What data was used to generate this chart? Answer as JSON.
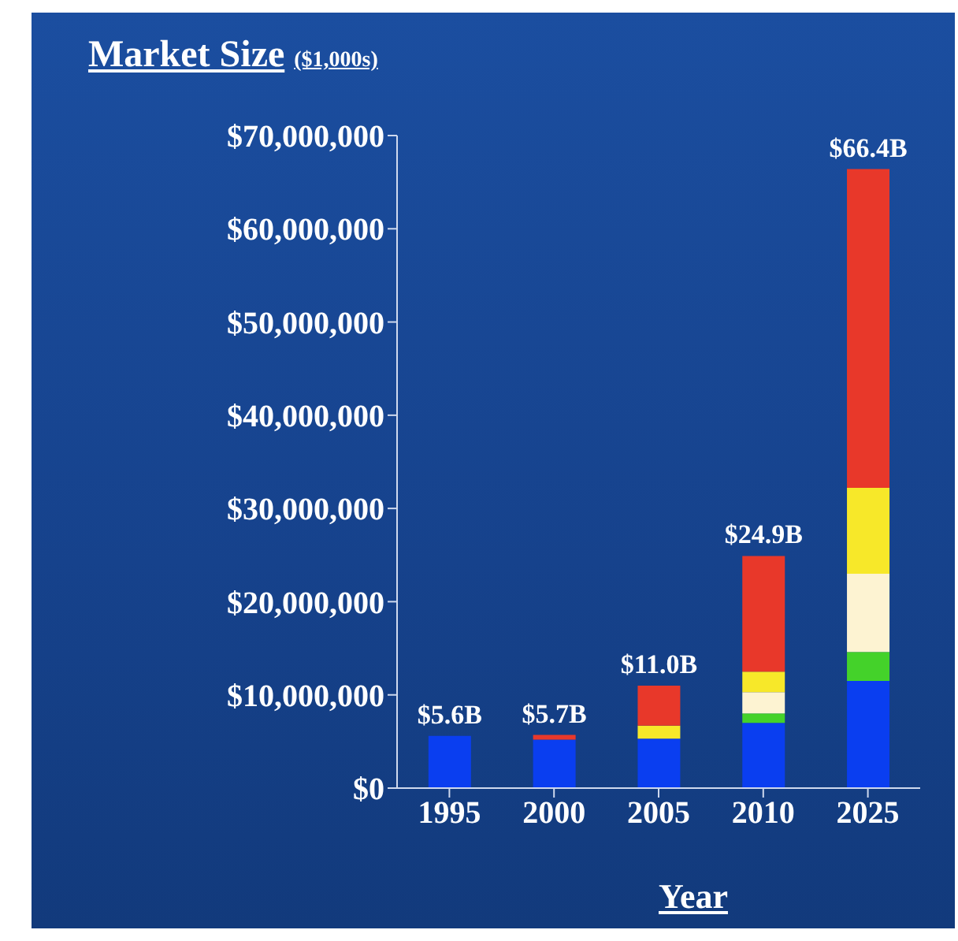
{
  "chart_data": {
    "type": "bar",
    "title": "Market Size",
    "subtitle": "($1,000s)",
    "xlabel": "Year",
    "categories": [
      "1995",
      "2000",
      "2005",
      "2010",
      "2025"
    ],
    "stacked": true,
    "series": [
      {
        "color": "#0a3ef0",
        "values": [
          5600000,
          5200000,
          5300000,
          7000000,
          11500000
        ]
      },
      {
        "color": "#44d22a",
        "values": [
          0,
          0,
          0,
          1000000,
          3100000
        ]
      },
      {
        "color": "#fdf3d2",
        "values": [
          0,
          0,
          0,
          2300000,
          8400000
        ]
      },
      {
        "color": "#f7e829",
        "values": [
          0,
          0,
          1400000,
          2200000,
          9200000
        ]
      },
      {
        "color": "#e8382a",
        "values": [
          0,
          500000,
          4300000,
          12400000,
          34200000
        ]
      }
    ],
    "totals": [
      "$5.6B",
      "$5.7B",
      "$11.0B",
      "$24.9B",
      "$66.4B"
    ],
    "ylim": [
      0,
      70000000
    ],
    "yticks": [
      {
        "value": 0,
        "label": "$0"
      },
      {
        "value": 10000000,
        "label": "$10,000,000"
      },
      {
        "value": 20000000,
        "label": "$20,000,000"
      },
      {
        "value": 30000000,
        "label": "$30,000,000"
      },
      {
        "value": 40000000,
        "label": "$40,000,000"
      },
      {
        "value": 50000000,
        "label": "$50,000,000"
      },
      {
        "value": 60000000,
        "label": "$60,000,000"
      },
      {
        "value": 70000000,
        "label": "$70,000,000"
      }
    ],
    "grid": false,
    "legend": false
  }
}
